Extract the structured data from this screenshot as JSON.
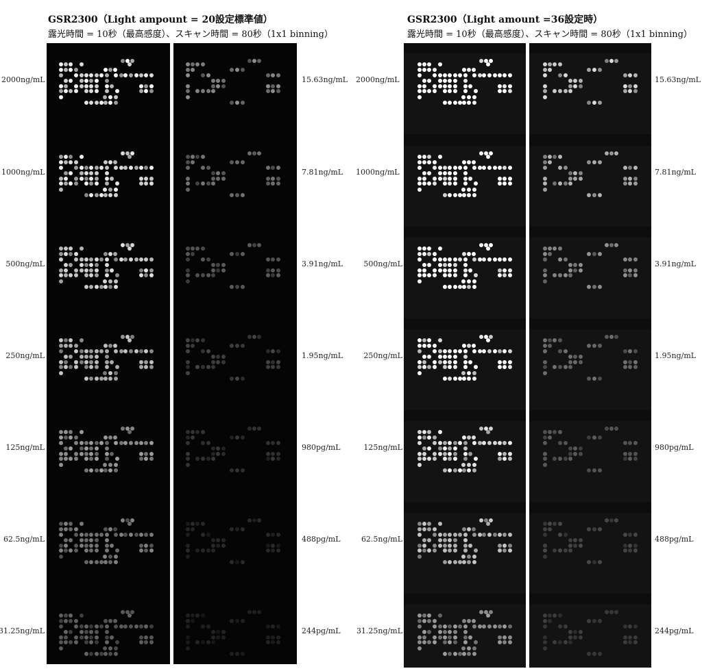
{
  "panels": [
    {
      "title": "GSR2300（Light ampount = 20設定標準値）",
      "subtitle": "露光時間 = 10秒（最高感度）、スキャン時間 = 80秒（1x1 binning）"
    },
    {
      "title": "GSR2300（Light amount =36設定時）",
      "subtitle": "露光時間 = 10秒（最高感度）、スキャン時間 = 80秒（1x1 binning）"
    }
  ],
  "left_labels": [
    "2000ng/mL",
    "1000ng/mL",
    "500ng/mL",
    "250ng/mL",
    "125ng/mL",
    "62.5ng/mL",
    "31.25ng/mL"
  ],
  "right_labels": [
    "15.63ng/mL",
    "7.81ng/mL",
    "3.91ng/mL",
    "1.95ng/mL",
    "980pg/mL",
    "488pg/mL",
    "244pg/mL"
  ],
  "brightness": {
    "panel_a": [
      1.0,
      0.95,
      0.88,
      0.78,
      0.62,
      0.5,
      0.38
    ],
    "panel_b": [
      0.55,
      0.45,
      0.35,
      0.26,
      0.2,
      0.15,
      0.12
    ],
    "gain_panel2": 1.55
  }
}
